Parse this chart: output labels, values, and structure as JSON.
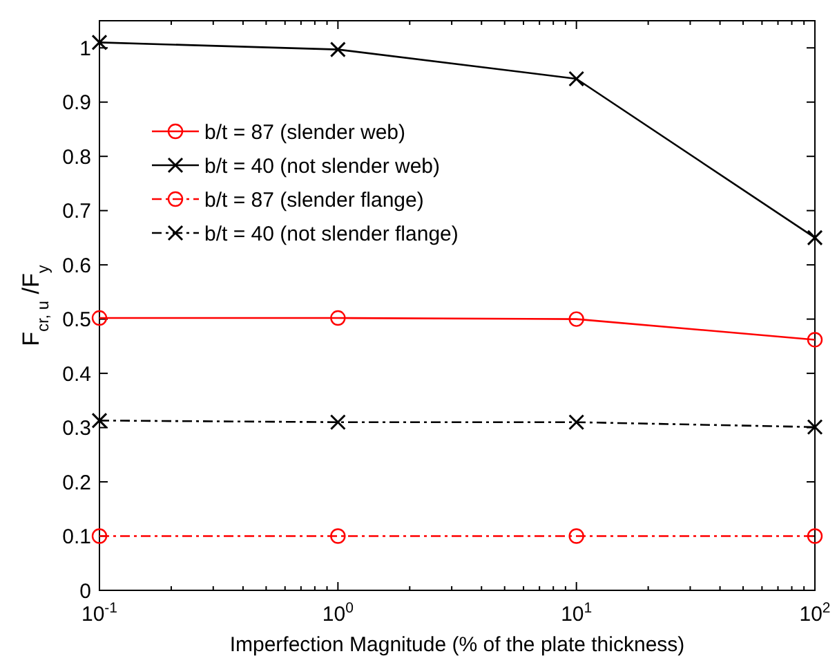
{
  "chart_data": {
    "type": "line",
    "xlabel": "Imperfection Magnitude (% of the plate thickness)",
    "ylabel": "F$_{cr, u}$ /F$_{y}$",
    "x": [
      0.1,
      1,
      10,
      100
    ],
    "log": "x",
    "xlim": [
      0.1,
      100
    ],
    "xticks": [
      {
        "value": 0.1,
        "label": "10$^{-1}$"
      },
      {
        "value": 1,
        "label": "10$^{0}$"
      },
      {
        "value": 10,
        "label": "10$^{1}$"
      },
      {
        "value": 100,
        "label": "10$^{2}$"
      }
    ],
    "ylim": [
      0,
      1.05
    ],
    "yticks": [
      0,
      0.1,
      0.2,
      0.3,
      0.4,
      0.5,
      0.6,
      0.7,
      0.8,
      0.9,
      1
    ],
    "grid": false,
    "legend": "top left",
    "series": [
      {
        "name": "b/t = 87 (slender web)",
        "color": "#ff0000",
        "values": [
          0.502,
          0.502,
          0.5,
          0.462
        ],
        "marker": "circle",
        "line_style": "solid"
      },
      {
        "name": "b/t = 40 (not slender web)",
        "color": "#000000",
        "values": [
          1.01,
          0.997,
          0.943,
          0.65
        ],
        "marker": "cross",
        "line_style": "solid"
      },
      {
        "name": "b/t = 87 (slender flange)",
        "color": "#ff0000",
        "values": [
          0.1,
          0.1,
          0.1,
          0.1
        ],
        "marker": "circle",
        "line_style": "dashdot"
      },
      {
        "name": "b/t = 40 (not slender flange)",
        "color": "#000000",
        "values": [
          0.313,
          0.31,
          0.31,
          0.301
        ],
        "marker": "cross",
        "line_style": "dashdot"
      }
    ]
  }
}
